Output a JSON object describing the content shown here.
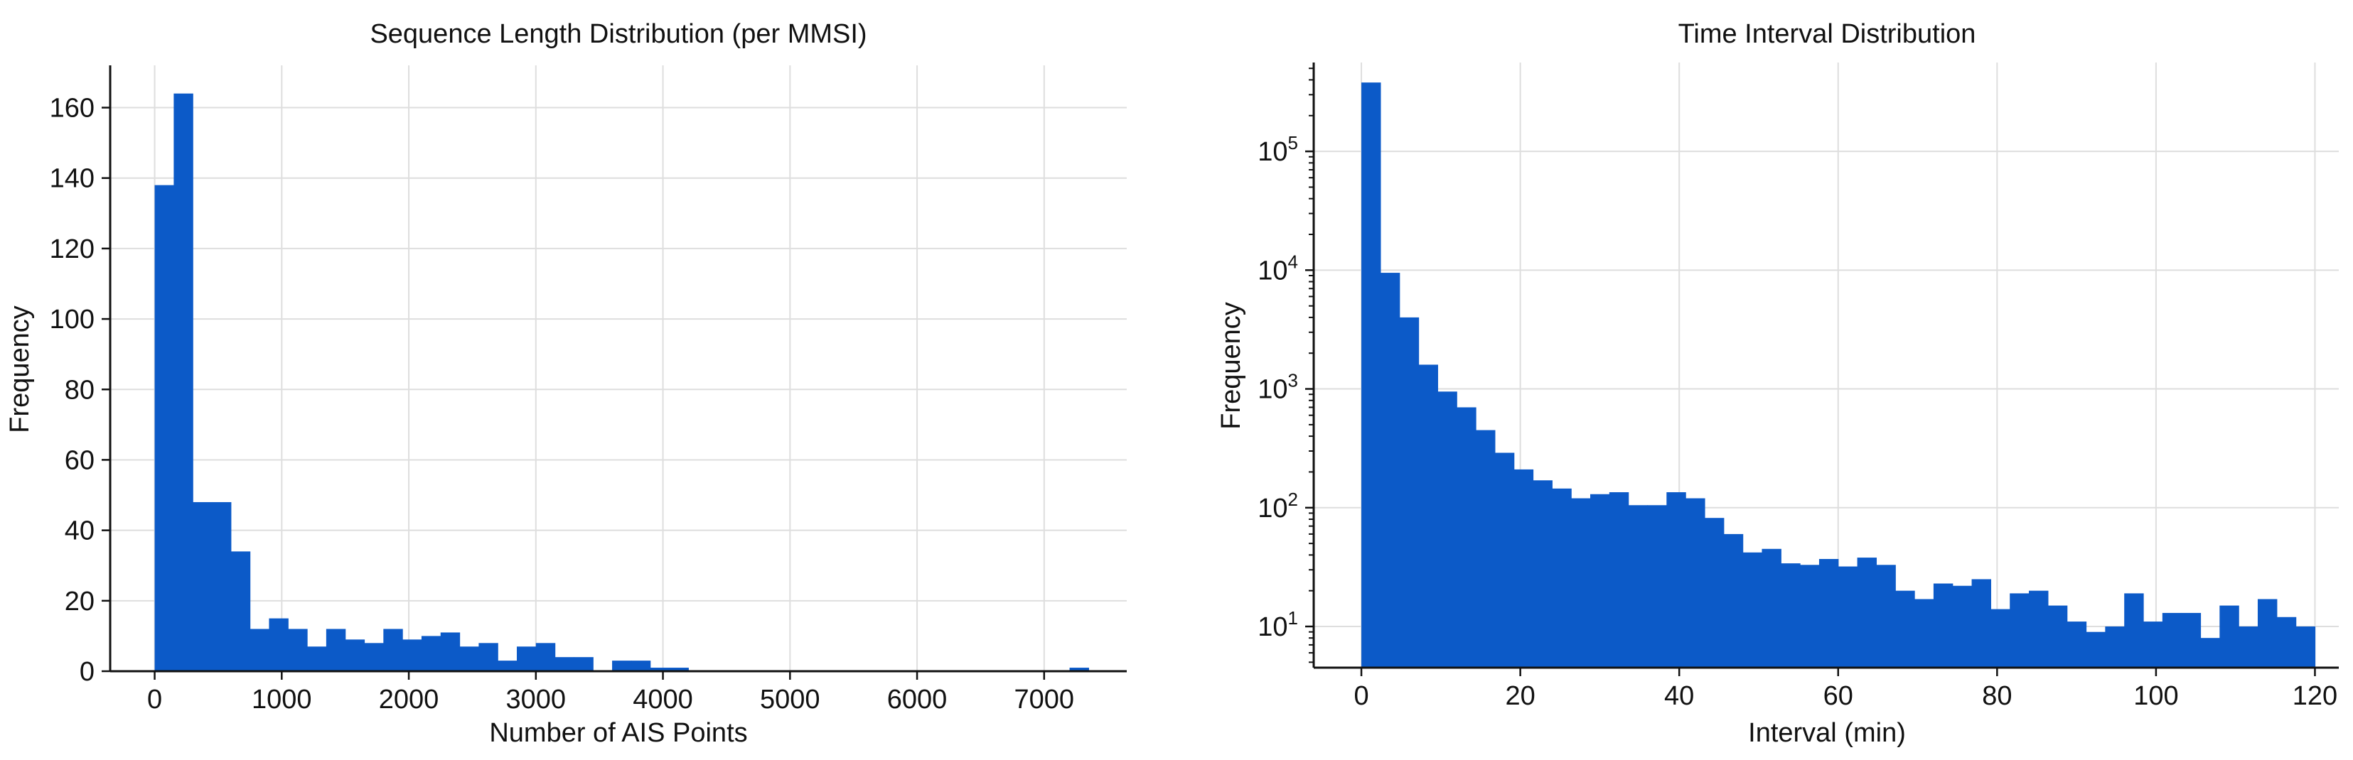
{
  "colors": {
    "bar": "#0c5ac8",
    "grid": "#dedede",
    "axis": "#111111"
  },
  "chart_data": [
    {
      "type": "bar",
      "title": "Sequence Length Distribution (per MMSI)",
      "xlabel": "Number of AIS Points",
      "ylabel": "Frequency",
      "xlim": [
        -350,
        7650
      ],
      "ylim": [
        0,
        172
      ],
      "xticks": [
        0,
        1000,
        2000,
        3000,
        4000,
        5000,
        6000,
        7000
      ],
      "xtick_labels": [
        "0",
        "1000",
        "2000",
        "3000",
        "4000",
        "5000",
        "6000",
        "7000"
      ],
      "yticks": [
        0,
        20,
        40,
        60,
        80,
        100,
        120,
        140,
        160
      ],
      "ytick_labels": [
        "0",
        "20",
        "40",
        "60",
        "80",
        "100",
        "120",
        "140",
        "160"
      ],
      "grid": true,
      "bin_start": 0,
      "bin_width": 150,
      "values": [
        138,
        164,
        48,
        48,
        34,
        12,
        15,
        12,
        7,
        12,
        9,
        8,
        12,
        9,
        10,
        11,
        7,
        8,
        3,
        7,
        8,
        4,
        4,
        0,
        3,
        3,
        1,
        1,
        0,
        0,
        0,
        0,
        0,
        0,
        0,
        0,
        0,
        0,
        0,
        0,
        0,
        0,
        0,
        0,
        0,
        0,
        0,
        0,
        1
      ]
    },
    {
      "type": "bar",
      "title": "Time Interval Distribution",
      "xlabel": "Interval (min)",
      "ylabel": "Frequency",
      "yscale": "log",
      "xlim": [
        -6,
        123
      ],
      "ylim": [
        4.5,
        560000
      ],
      "xticks": [
        0,
        20,
        40,
        60,
        80,
        100,
        120
      ],
      "xtick_labels": [
        "0",
        "20",
        "40",
        "60",
        "80",
        "100",
        "120"
      ],
      "yticks": [
        10,
        100,
        1000,
        10000,
        100000
      ],
      "ytick_labels": [
        {
          "base": "10",
          "exp": "1"
        },
        {
          "base": "10",
          "exp": "2"
        },
        {
          "base": "10",
          "exp": "3"
        },
        {
          "base": "10",
          "exp": "4"
        },
        {
          "base": "10",
          "exp": "5"
        }
      ],
      "grid": true,
      "bin_start": 0,
      "bin_width": 2.4,
      "values": [
        380000,
        9500,
        4000,
        1600,
        950,
        700,
        450,
        290,
        210,
        170,
        145,
        120,
        130,
        135,
        105,
        105,
        135,
        120,
        82,
        60,
        42,
        45,
        34,
        33,
        37,
        32,
        38,
        33,
        20,
        17,
        23,
        22,
        25,
        14,
        19,
        20,
        15,
        11,
        9,
        10,
        19,
        11,
        13,
        13,
        8,
        15,
        10,
        17,
        12,
        10
      ]
    }
  ]
}
